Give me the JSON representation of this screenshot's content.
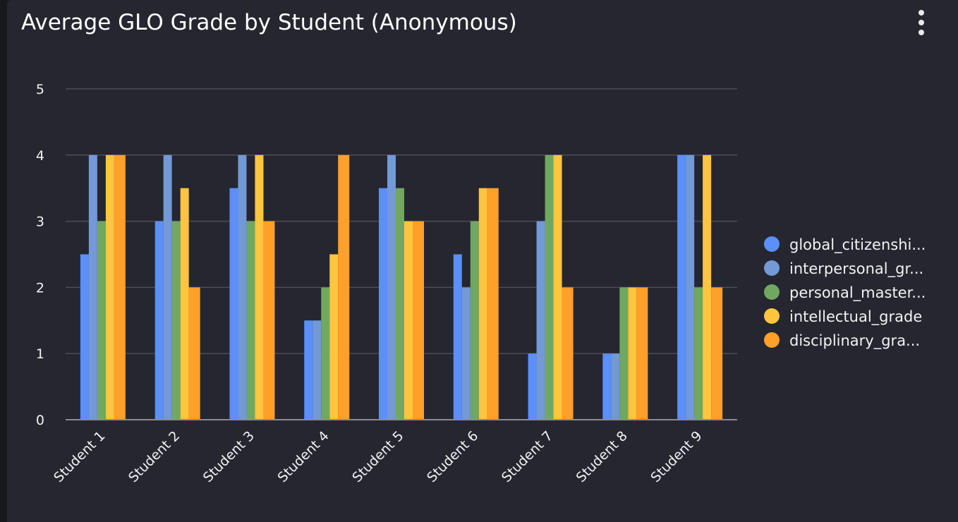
{
  "header": {
    "title": "Average GLO Grade by Student (Anonymous)",
    "menu_icon": "more-vertical-icon"
  },
  "chart_data": {
    "type": "bar",
    "title": "Average GLO Grade by Student (Anonymous)",
    "categories": [
      "Student 1",
      "Student 2",
      "Student 3",
      "Student 4",
      "Student 5",
      "Student 6",
      "Student 7",
      "Student 8",
      "Student 9"
    ],
    "series": [
      {
        "name": "global_citizenshi...",
        "color": "#5b8ff9",
        "values": [
          2.5,
          3,
          3.5,
          1.5,
          3.5,
          2.5,
          1,
          1,
          4
        ]
      },
      {
        "name": "interpersonal_gr...",
        "color": "#7399d6",
        "values": [
          4,
          4,
          4,
          1.5,
          4,
          2,
          3,
          1,
          4
        ]
      },
      {
        "name": "personal_master...",
        "color": "#70a860",
        "values": [
          3,
          3,
          3,
          2,
          3.5,
          3,
          4,
          2,
          2
        ]
      },
      {
        "name": "intellectual_grade",
        "color": "#ffc53d",
        "values": [
          4,
          3.5,
          4,
          2.5,
          3,
          3.5,
          4,
          2,
          4
        ]
      },
      {
        "name": "disciplinary_gra...",
        "color": "#ffa028",
        "values": [
          4,
          2,
          3,
          4,
          3,
          3.5,
          2,
          2,
          2
        ]
      }
    ],
    "ylim": [
      0,
      5
    ],
    "yticks": [
      "0",
      "1",
      "2",
      "3",
      "4",
      "5"
    ],
    "grid": true,
    "legend": "right"
  }
}
